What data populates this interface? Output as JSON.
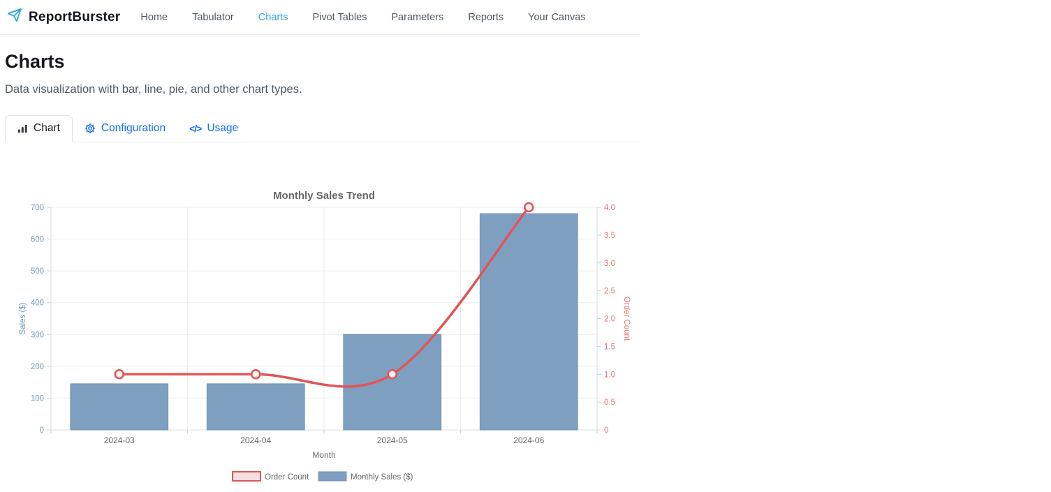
{
  "header": {
    "brand": "ReportBurster",
    "nav": [
      {
        "label": "Home",
        "active": false
      },
      {
        "label": "Tabulator",
        "active": false
      },
      {
        "label": "Charts",
        "active": true
      },
      {
        "label": "Pivot Tables",
        "active": false
      },
      {
        "label": "Parameters",
        "active": false
      },
      {
        "label": "Reports",
        "active": false
      },
      {
        "label": "Your Canvas",
        "active": false
      }
    ]
  },
  "page": {
    "title": "Charts",
    "subtitle": "Data visualization with bar, line, pie, and other chart types."
  },
  "tabs": [
    {
      "label": "Chart",
      "icon": "bar-chart-icon",
      "active": true
    },
    {
      "label": "Configuration",
      "icon": "gear-icon",
      "active": false
    },
    {
      "label": "Usage",
      "icon": "code-icon",
      "active": false
    }
  ],
  "colors": {
    "brand_accent": "#2aa9dc",
    "nav_inactive": "#4d5865",
    "tab_link_blue": "#0d6efd",
    "bar_fill": "#7f9fc0",
    "bar_border": "#6e91b8",
    "line_red": "#e05555",
    "marker_center": "#fdf1f1",
    "left_axis_text": "#7096c4",
    "right_axis_text": "#e57373",
    "axis_line": "#d8dce1",
    "tick_mark": "#c9ced4",
    "grid": "#ededed",
    "chart_text_gray": "#666666",
    "legend_order_fill": "#f8dede"
  },
  "chart_data": {
    "type": "bar",
    "subtype": "combo bar+line, dual y-axis",
    "title": "Monthly Sales Trend",
    "categories": [
      "2024-03",
      "2024-04",
      "2024-05",
      "2024-06"
    ],
    "series": [
      {
        "name": "Monthly Sales ($)",
        "type": "bar",
        "axis": "left",
        "values": [
          145,
          145,
          300,
          680
        ]
      },
      {
        "name": "Order Count",
        "type": "line",
        "axis": "right",
        "values": [
          1,
          1,
          1,
          4
        ]
      }
    ],
    "xlabel": "Month",
    "left_axis": {
      "label": "Sales ($)",
      "min": 0,
      "max": 700,
      "step": 100
    },
    "right_axis": {
      "label": "Order Count",
      "min": 0,
      "max": 4,
      "step": 0.5
    },
    "legend": [
      "Order Count",
      "Monthly Sales ($)"
    ],
    "legend_position": "bottom",
    "grid": true
  }
}
